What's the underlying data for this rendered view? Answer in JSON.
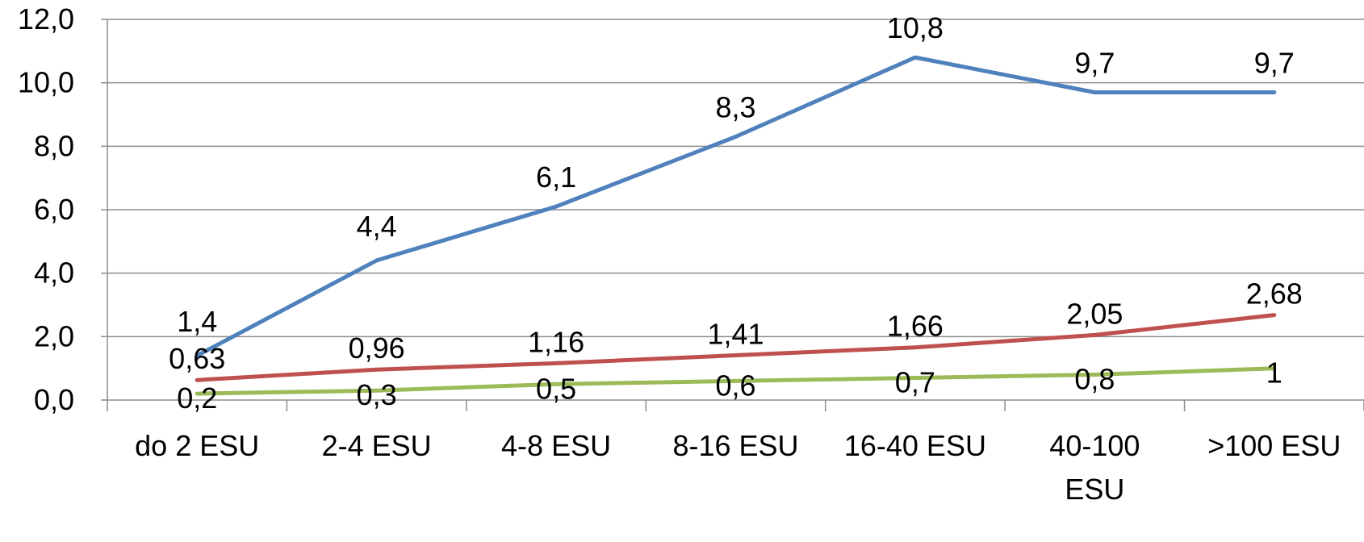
{
  "chart_data": {
    "type": "line",
    "categories": [
      [
        "do 2 ESU"
      ],
      [
        "2-4 ESU"
      ],
      [
        "4-8 ESU"
      ],
      [
        "8-16 ESU"
      ],
      [
        "16-40 ESU"
      ],
      [
        "40-100",
        "ESU"
      ],
      [
        ">100 ESU"
      ]
    ],
    "ylim": [
      0,
      12
    ],
    "yticks": [
      "0,0",
      "2,0",
      "4,0",
      "6,0",
      "8,0",
      "10,0",
      "12,0"
    ],
    "grid": true,
    "legend": "none",
    "series": [
      {
        "color": "#4F81BD",
        "values": [
          1.4,
          4.4,
          6.1,
          8.3,
          10.8,
          9.7,
          9.7
        ],
        "labels": [
          "1,4",
          "4,4",
          "6,1",
          "8,3",
          "10,8",
          "9,7",
          "9,7"
        ]
      },
      {
        "color": "#C0504D",
        "values": [
          0.63,
          0.96,
          1.16,
          1.41,
          1.66,
          2.05,
          2.68
        ],
        "labels": [
          "0,63",
          "0,96",
          "1,16",
          "1,41",
          "1,66",
          "2,05",
          "2,68"
        ]
      },
      {
        "color": "#9BBB59",
        "values": [
          0.2,
          0.3,
          0.5,
          0.6,
          0.7,
          0.8,
          1.0
        ],
        "labels": [
          "0,2",
          "0,3",
          "0,5",
          "0,6",
          "0,7",
          "0,8",
          "1"
        ]
      }
    ]
  }
}
